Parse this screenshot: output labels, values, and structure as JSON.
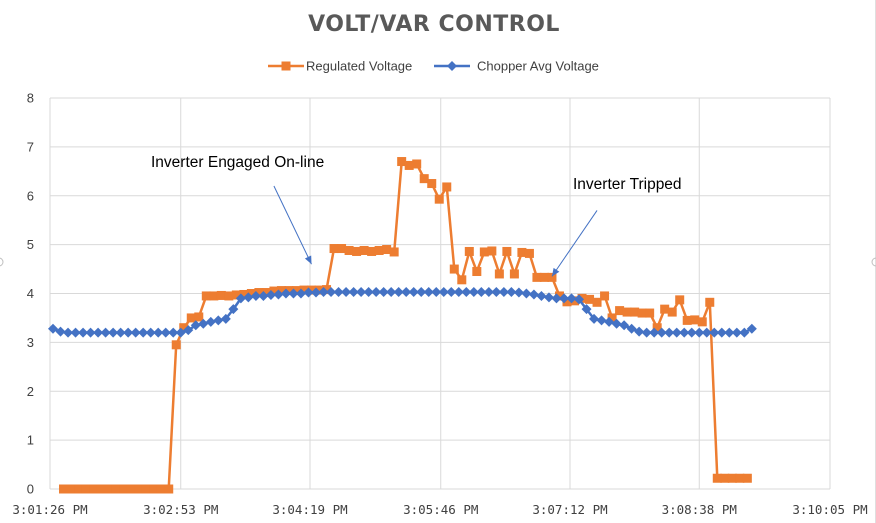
{
  "chart_data": {
    "type": "line",
    "title": "VOLT/VAR CONTROL",
    "xlabel": "",
    "ylabel": "",
    "xlim": [
      "3:01:26 PM",
      "3:10:05 PM"
    ],
    "ylim": [
      0,
      8
    ],
    "yticks": [
      "0",
      "1",
      "2",
      "3",
      "4",
      "5",
      "6",
      "7",
      "8"
    ],
    "xticks": [
      "3:01:26 PM",
      "3:02:53 PM",
      "3:04:19 PM",
      "3:05:46 PM",
      "3:07:12 PM",
      "3:08:38 PM",
      "3:10:05 PM"
    ],
    "grid": true,
    "legend_position": "top",
    "series": [
      {
        "name": "Regulated Voltage",
        "color": "#ed7d31",
        "marker": "square",
        "points": [
          [
            "3:01:35 PM",
            0
          ],
          [
            "3:01:40 PM",
            0
          ],
          [
            "3:01:45 PM",
            0
          ],
          [
            "3:01:50 PM",
            0
          ],
          [
            "3:01:55 PM",
            0
          ],
          [
            "3:02:00 PM",
            0
          ],
          [
            "3:02:05 PM",
            0
          ],
          [
            "3:02:10 PM",
            0
          ],
          [
            "3:02:15 PM",
            0
          ],
          [
            "3:02:20 PM",
            0
          ],
          [
            "3:02:25 PM",
            0
          ],
          [
            "3:02:30 PM",
            0
          ],
          [
            "3:02:35 PM",
            0
          ],
          [
            "3:02:40 PM",
            0
          ],
          [
            "3:02:45 PM",
            0
          ],
          [
            "3:02:50 PM",
            2.95
          ],
          [
            "3:02:55 PM",
            3.3
          ],
          [
            "3:03:00 PM",
            3.5
          ],
          [
            "3:03:05 PM",
            3.52
          ],
          [
            "3:03:10 PM",
            3.95
          ],
          [
            "3:03:15 PM",
            3.95
          ],
          [
            "3:03:20 PM",
            3.96
          ],
          [
            "3:03:25 PM",
            3.95
          ],
          [
            "3:03:30 PM",
            3.97
          ],
          [
            "3:03:35 PM",
            3.98
          ],
          [
            "3:03:40 PM",
            4.0
          ],
          [
            "3:03:45 PM",
            4.02
          ],
          [
            "3:03:50 PM",
            4.02
          ],
          [
            "3:03:55 PM",
            4.05
          ],
          [
            "3:04:00 PM",
            4.06
          ],
          [
            "3:04:05 PM",
            4.06
          ],
          [
            "3:04:10 PM",
            4.06
          ],
          [
            "3:04:15 PM",
            4.07
          ],
          [
            "3:04:20 PM",
            4.07
          ],
          [
            "3:04:25 PM",
            4.07
          ],
          [
            "3:04:30 PM",
            4.08
          ],
          [
            "3:04:35 PM",
            4.92
          ],
          [
            "3:04:40 PM",
            4.92
          ],
          [
            "3:04:45 PM",
            4.88
          ],
          [
            "3:04:50 PM",
            4.86
          ],
          [
            "3:04:55 PM",
            4.88
          ],
          [
            "3:05:00 PM",
            4.86
          ],
          [
            "3:05:05 PM",
            4.88
          ],
          [
            "3:05:10 PM",
            4.9
          ],
          [
            "3:05:15 PM",
            4.85
          ],
          [
            "3:05:20 PM",
            6.7
          ],
          [
            "3:05:25 PM",
            6.62
          ],
          [
            "3:05:30 PM",
            6.65
          ],
          [
            "3:05:35 PM",
            6.35
          ],
          [
            "3:05:40 PM",
            6.25
          ],
          [
            "3:05:45 PM",
            5.93
          ],
          [
            "3:05:50 PM",
            6.18
          ],
          [
            "3:05:55 PM",
            4.5
          ],
          [
            "3:06:00 PM",
            4.28
          ],
          [
            "3:06:05 PM",
            4.86
          ],
          [
            "3:06:10 PM",
            4.45
          ],
          [
            "3:06:15 PM",
            4.85
          ],
          [
            "3:06:20 PM",
            4.87
          ],
          [
            "3:06:25 PM",
            4.4
          ],
          [
            "3:06:30 PM",
            4.86
          ],
          [
            "3:06:35 PM",
            4.4
          ],
          [
            "3:06:40 PM",
            4.84
          ],
          [
            "3:06:45 PM",
            4.82
          ],
          [
            "3:06:50 PM",
            4.33
          ],
          [
            "3:06:55 PM",
            4.33
          ],
          [
            "3:07:00 PM",
            4.33
          ],
          [
            "3:07:05 PM",
            3.95
          ],
          [
            "3:07:10 PM",
            3.83
          ],
          [
            "3:07:15 PM",
            3.85
          ],
          [
            "3:07:20 PM",
            3.9
          ],
          [
            "3:07:25 PM",
            3.88
          ],
          [
            "3:07:30 PM",
            3.82
          ],
          [
            "3:07:35 PM",
            3.95
          ],
          [
            "3:07:40 PM",
            3.5
          ],
          [
            "3:07:45 PM",
            3.65
          ],
          [
            "3:07:50 PM",
            3.62
          ],
          [
            "3:07:55 PM",
            3.62
          ],
          [
            "3:08:00 PM",
            3.6
          ],
          [
            "3:08:05 PM",
            3.6
          ],
          [
            "3:08:10 PM",
            3.3
          ],
          [
            "3:08:15 PM",
            3.68
          ],
          [
            "3:08:20 PM",
            3.62
          ],
          [
            "3:08:25 PM",
            3.87
          ],
          [
            "3:08:30 PM",
            3.45
          ],
          [
            "3:08:35 PM",
            3.46
          ],
          [
            "3:08:40 PM",
            3.42
          ],
          [
            "3:08:45 PM",
            3.82
          ],
          [
            "3:08:50 PM",
            0.22
          ],
          [
            "3:08:55 PM",
            0.22
          ],
          [
            "3:09:00 PM",
            0.22
          ],
          [
            "3:09:05 PM",
            0.22
          ],
          [
            "3:09:10 PM",
            0.22
          ]
        ]
      },
      {
        "name": "Chopper Avg Voltage",
        "color": "#4472c4",
        "marker": "diamond",
        "points": [
          [
            "3:01:28 PM",
            3.28
          ],
          [
            "3:01:33 PM",
            3.22
          ],
          [
            "3:01:38 PM",
            3.2
          ],
          [
            "3:01:43 PM",
            3.2
          ],
          [
            "3:01:48 PM",
            3.2
          ],
          [
            "3:01:53 PM",
            3.2
          ],
          [
            "3:01:58 PM",
            3.2
          ],
          [
            "3:02:03 PM",
            3.2
          ],
          [
            "3:02:08 PM",
            3.2
          ],
          [
            "3:02:13 PM",
            3.2
          ],
          [
            "3:02:18 PM",
            3.2
          ],
          [
            "3:02:23 PM",
            3.2
          ],
          [
            "3:02:28 PM",
            3.2
          ],
          [
            "3:02:33 PM",
            3.2
          ],
          [
            "3:02:38 PM",
            3.2
          ],
          [
            "3:02:43 PM",
            3.2
          ],
          [
            "3:02:48 PM",
            3.2
          ],
          [
            "3:02:53 PM",
            3.2
          ],
          [
            "3:02:58 PM",
            3.25
          ],
          [
            "3:03:03 PM",
            3.35
          ],
          [
            "3:03:08 PM",
            3.38
          ],
          [
            "3:03:13 PM",
            3.42
          ],
          [
            "3:03:18 PM",
            3.45
          ],
          [
            "3:03:23 PM",
            3.48
          ],
          [
            "3:03:28 PM",
            3.68
          ],
          [
            "3:03:33 PM",
            3.9
          ],
          [
            "3:03:38 PM",
            3.92
          ],
          [
            "3:03:43 PM",
            3.95
          ],
          [
            "3:03:48 PM",
            3.95
          ],
          [
            "3:03:53 PM",
            3.97
          ],
          [
            "3:03:58 PM",
            3.98
          ],
          [
            "3:04:03 PM",
            4.0
          ],
          [
            "3:04:08 PM",
            4.0
          ],
          [
            "3:04:13 PM",
            4.0
          ],
          [
            "3:04:18 PM",
            4.02
          ],
          [
            "3:04:23 PM",
            4.02
          ],
          [
            "3:04:28 PM",
            4.03
          ],
          [
            "3:04:33 PM",
            4.03
          ],
          [
            "3:04:38 PM",
            4.03
          ],
          [
            "3:04:43 PM",
            4.03
          ],
          [
            "3:04:48 PM",
            4.03
          ],
          [
            "3:04:53 PM",
            4.03
          ],
          [
            "3:04:58 PM",
            4.03
          ],
          [
            "3:05:03 PM",
            4.03
          ],
          [
            "3:05:08 PM",
            4.03
          ],
          [
            "3:05:13 PM",
            4.03
          ],
          [
            "3:05:18 PM",
            4.03
          ],
          [
            "3:05:23 PM",
            4.03
          ],
          [
            "3:05:28 PM",
            4.03
          ],
          [
            "3:05:33 PM",
            4.03
          ],
          [
            "3:05:38 PM",
            4.03
          ],
          [
            "3:05:43 PM",
            4.03
          ],
          [
            "3:05:48 PM",
            4.03
          ],
          [
            "3:05:53 PM",
            4.03
          ],
          [
            "3:05:58 PM",
            4.03
          ],
          [
            "3:06:03 PM",
            4.03
          ],
          [
            "3:06:08 PM",
            4.03
          ],
          [
            "3:06:13 PM",
            4.03
          ],
          [
            "3:06:18 PM",
            4.03
          ],
          [
            "3:06:23 PM",
            4.03
          ],
          [
            "3:06:28 PM",
            4.03
          ],
          [
            "3:06:33 PM",
            4.03
          ],
          [
            "3:06:38 PM",
            4.02
          ],
          [
            "3:06:43 PM",
            4.0
          ],
          [
            "3:06:48 PM",
            3.98
          ],
          [
            "3:06:53 PM",
            3.95
          ],
          [
            "3:06:58 PM",
            3.92
          ],
          [
            "3:07:03 PM",
            3.9
          ],
          [
            "3:07:08 PM",
            3.9
          ],
          [
            "3:07:13 PM",
            3.9
          ],
          [
            "3:07:18 PM",
            3.88
          ],
          [
            "3:07:23 PM",
            3.68
          ],
          [
            "3:07:28 PM",
            3.48
          ],
          [
            "3:07:33 PM",
            3.45
          ],
          [
            "3:07:38 PM",
            3.42
          ],
          [
            "3:07:43 PM",
            3.38
          ],
          [
            "3:07:48 PM",
            3.35
          ],
          [
            "3:07:53 PM",
            3.28
          ],
          [
            "3:07:58 PM",
            3.22
          ],
          [
            "3:08:03 PM",
            3.2
          ],
          [
            "3:08:08 PM",
            3.2
          ],
          [
            "3:08:13 PM",
            3.2
          ],
          [
            "3:08:18 PM",
            3.2
          ],
          [
            "3:08:23 PM",
            3.2
          ],
          [
            "3:08:28 PM",
            3.2
          ],
          [
            "3:08:33 PM",
            3.2
          ],
          [
            "3:08:38 PM",
            3.2
          ],
          [
            "3:08:43 PM",
            3.2
          ],
          [
            "3:08:48 PM",
            3.2
          ],
          [
            "3:08:53 PM",
            3.2
          ],
          [
            "3:08:58 PM",
            3.2
          ],
          [
            "3:09:03 PM",
            3.2
          ],
          [
            "3:09:08 PM",
            3.2
          ],
          [
            "3:09:13 PM",
            3.28
          ]
        ]
      }
    ],
    "annotations": [
      {
        "text": "Inverter Engaged On-line",
        "arrow_from": [
          "3:03:55 PM",
          6.2
        ],
        "arrow_to": [
          "3:04:20 PM",
          4.6
        ]
      },
      {
        "text": "Inverter Tripped",
        "arrow_from": [
          "3:07:30 PM",
          5.7
        ],
        "arrow_to": [
          "3:07:00 PM",
          4.35
        ]
      }
    ]
  }
}
